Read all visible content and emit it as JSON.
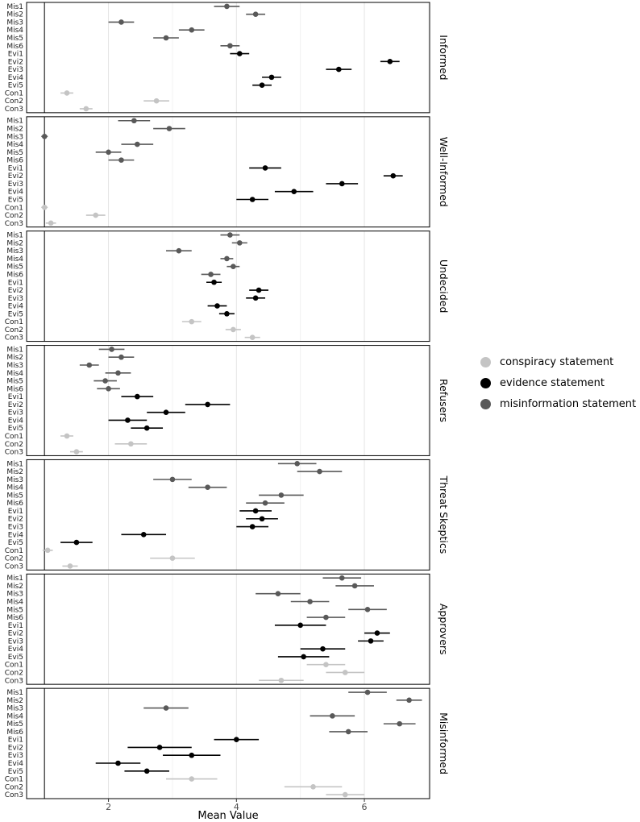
{
  "chart_data": {
    "type": "scatter",
    "subtype": "horizontal dot plot with error bars, 7 row facets",
    "xlabel": "Mean Value",
    "x_ticks": [
      2,
      4,
      6
    ],
    "xlim": [
      0.72,
      7.02
    ],
    "reference_line_x": 1,
    "grid": "major vertical gridlines at ticks, minor at odd values",
    "legend_position": "right-middle",
    "row_labels": [
      "Mis1",
      "Mis2",
      "Mis3",
      "Mis4",
      "Mis5",
      "Mis6",
      "Evi1",
      "Evi2",
      "Evi3",
      "Evi4",
      "Evi5",
      "Con1",
      "Con2",
      "Con3"
    ],
    "row_categories": [
      "misinformation",
      "misinformation",
      "misinformation",
      "misinformation",
      "misinformation",
      "misinformation",
      "evidence",
      "evidence",
      "evidence",
      "evidence",
      "evidence",
      "conspiracy",
      "conspiracy",
      "conspiracy"
    ],
    "colors": {
      "conspiracy": "#c4c4c4",
      "evidence": "#000000",
      "misinformation": "#595959"
    },
    "legend": [
      {
        "label": "conspiracy statement",
        "key": "conspiracy"
      },
      {
        "label": "evidence statement",
        "key": "evidence"
      },
      {
        "label": "misinformation statement",
        "key": "misinformation"
      }
    ],
    "panels": [
      {
        "name": "Informed",
        "means": [
          3.85,
          4.3,
          2.2,
          3.3,
          2.9,
          3.9,
          4.05,
          6.4,
          5.6,
          4.55,
          4.4,
          1.35,
          2.75,
          1.65
        ],
        "errors": [
          0.2,
          0.15,
          0.2,
          0.2,
          0.2,
          0.15,
          0.15,
          0.15,
          0.2,
          0.15,
          0.15,
          0.1,
          0.2,
          0.1
        ]
      },
      {
        "name": "Well-Informed",
        "means": [
          2.4,
          2.95,
          1.0,
          2.45,
          2.0,
          2.2,
          4.45,
          6.45,
          5.65,
          4.9,
          4.25,
          1.0,
          1.8,
          1.1
        ],
        "errors": [
          0.25,
          0.25,
          0.05,
          0.25,
          0.2,
          0.2,
          0.25,
          0.15,
          0.25,
          0.3,
          0.25,
          0.05,
          0.15,
          0.08
        ]
      },
      {
        "name": "Undecided",
        "means": [
          3.9,
          4.05,
          3.1,
          3.85,
          3.95,
          3.6,
          3.65,
          4.35,
          4.3,
          3.7,
          3.85,
          3.3,
          3.95,
          4.25
        ],
        "errors": [
          0.15,
          0.12,
          0.2,
          0.1,
          0.1,
          0.15,
          0.12,
          0.15,
          0.15,
          0.15,
          0.12,
          0.15,
          0.12,
          0.12
        ]
      },
      {
        "name": "Refusers",
        "means": [
          2.05,
          2.2,
          1.7,
          2.15,
          1.95,
          2.0,
          2.45,
          3.55,
          2.9,
          2.3,
          2.6,
          1.35,
          2.35,
          1.5
        ],
        "errors": [
          0.2,
          0.2,
          0.15,
          0.2,
          0.18,
          0.18,
          0.25,
          0.35,
          0.3,
          0.3,
          0.25,
          0.1,
          0.25,
          0.1
        ]
      },
      {
        "name": "Threat Skeptics",
        "means": [
          4.95,
          5.3,
          3.0,
          3.55,
          4.7,
          4.45,
          4.3,
          4.4,
          4.25,
          2.55,
          1.5,
          1.05,
          3.0,
          1.4
        ],
        "errors": [
          0.3,
          0.35,
          0.3,
          0.3,
          0.35,
          0.3,
          0.25,
          0.25,
          0.25,
          0.35,
          0.25,
          0.08,
          0.35,
          0.12
        ]
      },
      {
        "name": "Approvers",
        "means": [
          5.65,
          5.85,
          4.65,
          5.15,
          6.05,
          5.4,
          5.0,
          6.2,
          6.1,
          5.35,
          5.05,
          5.4,
          5.7,
          4.7
        ],
        "errors": [
          0.3,
          0.3,
          0.35,
          0.3,
          0.3,
          0.3,
          0.4,
          0.2,
          0.2,
          0.35,
          0.4,
          0.3,
          0.3,
          0.35
        ]
      },
      {
        "name": "Misinformed",
        "means": [
          6.05,
          6.7,
          2.9,
          5.5,
          6.55,
          5.75,
          4.0,
          2.8,
          3.3,
          2.15,
          2.6,
          3.3,
          5.2,
          5.7
        ],
        "errors": [
          0.3,
          0.2,
          0.35,
          0.35,
          0.25,
          0.3,
          0.35,
          0.5,
          0.45,
          0.35,
          0.35,
          0.4,
          0.45,
          0.3
        ]
      }
    ]
  }
}
